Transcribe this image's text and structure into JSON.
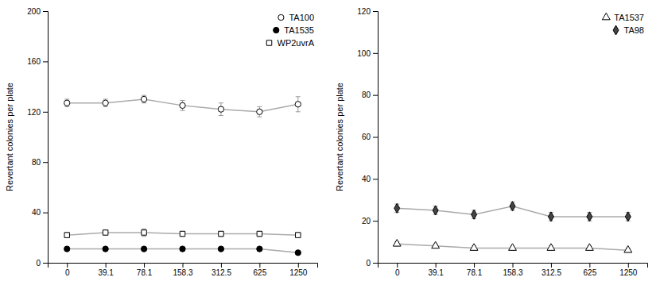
{
  "chart_data": [
    {
      "type": "line",
      "categories": [
        "0",
        "39.1",
        "78.1",
        "158.3",
        "312.5",
        "625",
        "1250"
      ],
      "y_label": "Revertant colonies per plate",
      "ylim": [
        0,
        200
      ],
      "yticks": [
        0,
        40,
        80,
        120,
        160,
        200
      ],
      "color": "#aaaaaa",
      "grid": false,
      "legend": "upper right",
      "series": [
        {
          "name": "TA100",
          "marker": "circle",
          "color": "#ffffff",
          "values": [
            127,
            127,
            130,
            125,
            122,
            120,
            126
          ],
          "errors": [
            3,
            3,
            3,
            4,
            5,
            4,
            6
          ]
        },
        {
          "name": "TA1535",
          "marker": "circle",
          "color": "#000000",
          "values": [
            11,
            11,
            11,
            11,
            11,
            11,
            8
          ],
          "errors": [
            1,
            1,
            1,
            1,
            1,
            1,
            1
          ]
        },
        {
          "name": "WP2uvrA",
          "marker": "square",
          "color": "#ffffff",
          "values": [
            22,
            24,
            24,
            23,
            23,
            23,
            22
          ],
          "errors": [
            2,
            2,
            3,
            2,
            2,
            2,
            2
          ]
        }
      ]
    },
    {
      "type": "line",
      "categories": [
        "0",
        "39.1",
        "78.1",
        "158.3",
        "312.5",
        "625",
        "1250"
      ],
      "y_label": "Revertant colonies per plate",
      "ylim": [
        0,
        120
      ],
      "yticks": [
        0,
        20,
        40,
        60,
        80,
        100,
        120
      ],
      "color": "#aaaaaa",
      "grid": false,
      "legend": "upper right",
      "series": [
        {
          "name": "TA1537",
          "marker": "triangle",
          "color": "#ffffff",
          "values": [
            9,
            8,
            7,
            7,
            7,
            7,
            6
          ],
          "errors": [
            1,
            1,
            1,
            1,
            1,
            1,
            1
          ]
        },
        {
          "name": "TA98",
          "marker": "diamond",
          "color": "#444444",
          "values": [
            26,
            25,
            23,
            27,
            22,
            22,
            22
          ],
          "errors": [
            2,
            2,
            2,
            2,
            2,
            2,
            2
          ]
        }
      ]
    }
  ]
}
